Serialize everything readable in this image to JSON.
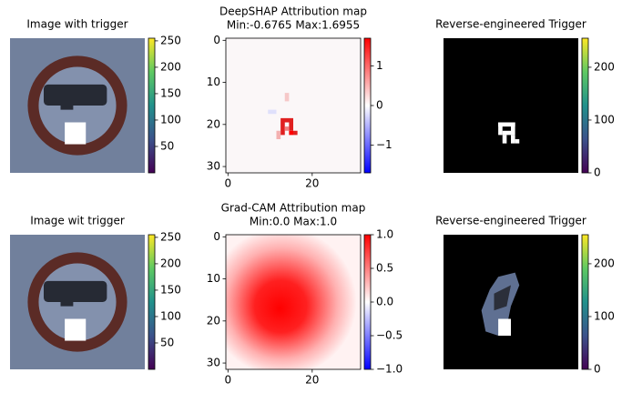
{
  "chart_data": [
    {
      "type": "image",
      "title": "Image with trigger",
      "colormap": "viridis",
      "clim": [
        0,
        255
      ],
      "cticks": [
        50,
        100,
        150,
        200,
        250
      ]
    },
    {
      "type": "heatmap",
      "title": "DeepSHAP Attribution map",
      "subtitle": "Min:-0.6765 Max:1.6955",
      "xlim": [
        -0.5,
        31.5
      ],
      "xticks": [
        0,
        20
      ],
      "ylim": [
        31.5,
        -0.5
      ],
      "yticks": [
        0,
        10,
        20,
        30
      ],
      "colormap": "bwr",
      "clim": [
        -1.6955,
        1.6955
      ],
      "cticks": [
        {
          "value": -1,
          "label": "−1"
        },
        0,
        1
      ]
    },
    {
      "type": "image",
      "title": "Reverse-engineered Trigger",
      "colormap": "viridis",
      "clim": [
        0,
        255
      ],
      "cticks": [
        0,
        100,
        200
      ]
    },
    {
      "type": "image",
      "title": "Image wit trigger",
      "colormap": "viridis",
      "clim": [
        0,
        255
      ],
      "cticks": [
        50,
        100,
        150,
        200,
        250
      ]
    },
    {
      "type": "heatmap",
      "title": "Grad-CAM Attribution map",
      "subtitle": "Min:0.0 Max:1.0",
      "xlim": [
        -0.5,
        31.5
      ],
      "xticks": [
        0,
        20
      ],
      "ylim": [
        31.5,
        -0.5
      ],
      "yticks": [
        0,
        10,
        20,
        30
      ],
      "colormap": "bwr",
      "clim": [
        -1,
        1
      ],
      "cticks": [
        {
          "value": -1,
          "label": "−1.0"
        },
        {
          "value": -0.5,
          "label": "−0.5"
        },
        {
          "value": 0,
          "label": "0.0"
        },
        {
          "value": 0.5,
          "label": "0.5"
        },
        {
          "value": 1,
          "label": "1.0"
        }
      ]
    },
    {
      "type": "image",
      "title": "Reverse-engineered Trigger",
      "colormap": "viridis",
      "clim": [
        0,
        255
      ],
      "cticks": [
        0,
        100,
        200
      ]
    }
  ]
}
